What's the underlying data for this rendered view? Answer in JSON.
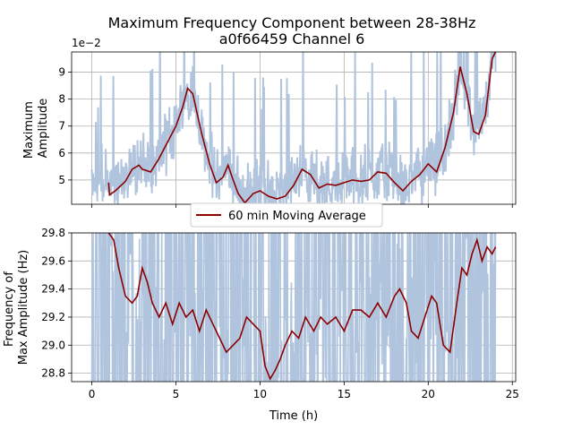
{
  "figure": {
    "title_line1": "Maximum Frequency Component between 28-38Hz",
    "title_line2": "a0f66459 Channel 6"
  },
  "colors": {
    "raw": "#b0c4de",
    "avg": "#8b0000",
    "grid": "#b0b0b0"
  },
  "chart_data": [
    {
      "type": "line",
      "ylabel": "Maximum\nAmplitude",
      "y_offset_label": "1e−2",
      "ylim": [
        4.1,
        9.75
      ],
      "yticks": [
        5,
        6,
        7,
        8,
        9
      ],
      "xlim": [
        -1.2,
        25.2
      ],
      "xticks": [
        0,
        5,
        10,
        15,
        20,
        25
      ],
      "grid": true,
      "series": [
        {
          "name": "60 min Moving Average",
          "x": [
            1.0,
            1.05,
            1.4,
            2.0,
            2.4,
            2.8,
            3.0,
            3.5,
            4.0,
            4.5,
            5.0,
            5.4,
            5.7,
            6.0,
            6.5,
            7.0,
            7.4,
            7.8,
            8.1,
            8.4,
            8.7,
            9.1,
            9.6,
            10.0,
            10.5,
            11.0,
            11.5,
            12.0,
            12.5,
            13.0,
            13.5,
            14.0,
            14.5,
            15.0,
            15.5,
            16.0,
            16.5,
            17.0,
            17.5,
            18.0,
            18.5,
            19.0,
            19.5,
            20.0,
            20.5,
            21.0,
            21.5,
            21.9,
            22.3,
            22.7,
            23.0,
            23.4,
            23.8,
            24.0
          ],
          "values": [
            4.9,
            4.45,
            4.6,
            4.95,
            5.4,
            5.55,
            5.4,
            5.3,
            5.8,
            6.4,
            7.0,
            7.7,
            8.4,
            8.2,
            6.8,
            5.6,
            4.9,
            5.1,
            5.55,
            5.0,
            4.5,
            4.15,
            4.5,
            4.6,
            4.4,
            4.3,
            4.4,
            4.8,
            5.4,
            5.2,
            4.7,
            4.85,
            4.8,
            4.9,
            5.0,
            4.95,
            5.0,
            5.3,
            5.25,
            4.9,
            4.6,
            4.95,
            5.2,
            5.6,
            5.3,
            6.2,
            7.5,
            9.2,
            8.2,
            6.8,
            6.7,
            7.4,
            9.5,
            9.75
          ]
        }
      ]
    },
    {
      "type": "line",
      "xlabel": "Time (h)",
      "ylabel": "Frequency of\nMax Amplitude (Hz)",
      "ylim": [
        28.74,
        29.8
      ],
      "yticks": [
        28.8,
        29.0,
        29.2,
        29.4,
        29.6,
        29.8
      ],
      "xlim": [
        -1.2,
        25.2
      ],
      "xticks": [
        0,
        5,
        10,
        15,
        20,
        25
      ],
      "grid": true,
      "series": [
        {
          "name": "60 min Moving Average",
          "x": [
            1.0,
            1.3,
            1.6,
            2.0,
            2.4,
            2.7,
            3.0,
            3.3,
            3.6,
            4.0,
            4.4,
            4.8,
            5.2,
            5.6,
            6.0,
            6.4,
            6.8,
            7.2,
            7.6,
            8.0,
            8.4,
            8.8,
            9.2,
            9.6,
            10.0,
            10.3,
            10.6,
            10.9,
            11.2,
            11.5,
            11.9,
            12.3,
            12.7,
            13.2,
            13.6,
            14.0,
            14.5,
            15.0,
            15.5,
            16.0,
            16.5,
            17.0,
            17.5,
            18.0,
            18.3,
            18.7,
            19.0,
            19.4,
            19.8,
            20.2,
            20.5,
            20.9,
            21.3,
            21.7,
            22.0,
            22.3,
            22.6,
            22.9,
            23.2,
            23.5,
            23.8,
            24.0
          ],
          "values": [
            29.8,
            29.75,
            29.55,
            29.35,
            29.3,
            29.35,
            29.55,
            29.45,
            29.3,
            29.2,
            29.3,
            29.15,
            29.3,
            29.2,
            29.25,
            29.1,
            29.25,
            29.15,
            29.05,
            28.95,
            29.0,
            29.05,
            29.2,
            29.15,
            29.1,
            28.85,
            28.76,
            28.82,
            28.9,
            29.0,
            29.1,
            29.05,
            29.2,
            29.1,
            29.2,
            29.15,
            29.2,
            29.1,
            29.25,
            29.25,
            29.2,
            29.3,
            29.2,
            29.35,
            29.4,
            29.3,
            29.1,
            29.05,
            29.2,
            29.35,
            29.3,
            29.0,
            28.95,
            29.3,
            29.55,
            29.5,
            29.65,
            29.75,
            29.6,
            29.7,
            29.65,
            29.7
          ]
        }
      ]
    }
  ],
  "legend": {
    "label": "60 min Moving Average",
    "placement": "between-panels-center"
  }
}
